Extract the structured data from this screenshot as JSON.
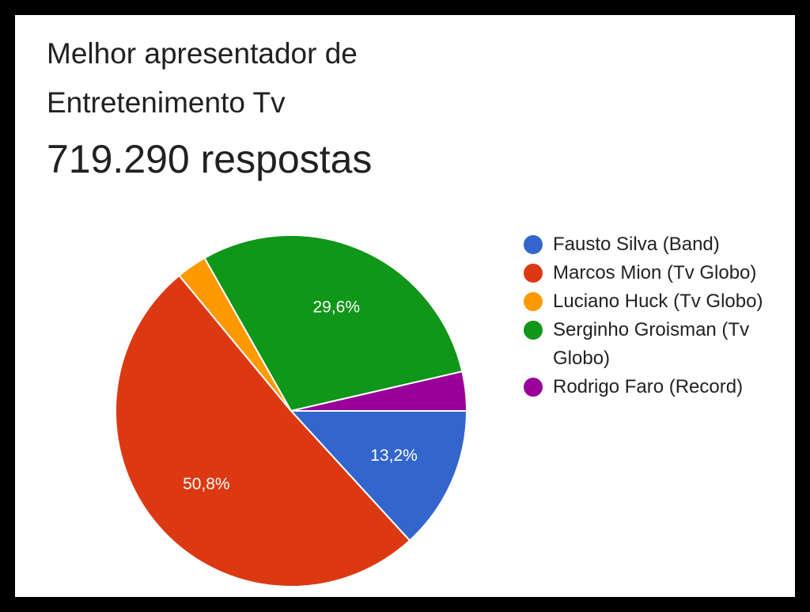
{
  "header": {
    "title": "Melhor apresentador de Entretenimento Tv",
    "responses": "719.290 respostas"
  },
  "chart_data": {
    "type": "pie",
    "title": "Melhor apresentador de Entretenimento Tv",
    "subtitle": "719.290 respostas",
    "legend_position": "right",
    "slices": [
      {
        "label": "Fausto Silva (Band)",
        "value": 13.2,
        "display": "13,2%",
        "color": "#3366cc"
      },
      {
        "label": "Marcos Mion (Tv Globo)",
        "value": 50.8,
        "display": "50,8%",
        "color": "#dc3912"
      },
      {
        "label": "Luciano Huck (Tv Globo)",
        "value": 2.8,
        "display": "",
        "color": "#ff9900"
      },
      {
        "label": "Serginho Groisman (Tv Globo)",
        "value": 29.6,
        "display": "29,6%",
        "color": "#109618"
      },
      {
        "label": "Rodrigo Faro (Record)",
        "value": 3.6,
        "display": "",
        "color": "#990099"
      }
    ]
  }
}
